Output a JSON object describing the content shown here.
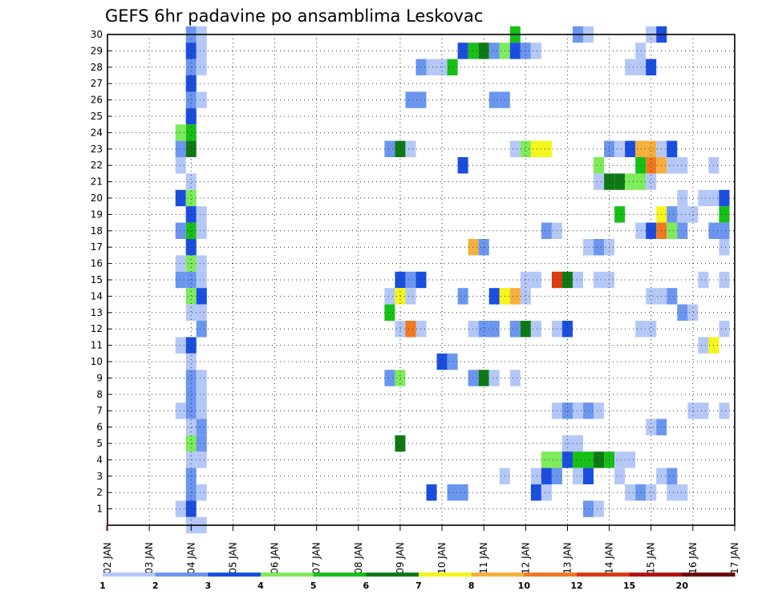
{
  "chart_data": {
    "type": "heatmap",
    "title": "GEFS 6hr padavine po ansamblima Leskovac",
    "xlabel": "",
    "ylabel": "",
    "x_ticks": [
      "02 JAN",
      "03 JAN",
      "04 JAN",
      "05 JAN",
      "06 JAN",
      "07 JAN",
      "08 JAN",
      "09 JAN",
      "10 JAN",
      "11 JAN",
      "12 JAN",
      "13 JAN",
      "14 JAN",
      "15 JAN",
      "16 JAN",
      "17 JAN"
    ],
    "y_ticks": [
      "1",
      "2",
      "3",
      "4",
      "5",
      "6",
      "7",
      "8",
      "9",
      "10",
      "11",
      "12",
      "13",
      "14",
      "15",
      "16",
      "17",
      "18",
      "19",
      "20",
      "21",
      "22",
      "23",
      "24",
      "25",
      "26",
      "27",
      "28",
      "29",
      "30"
    ],
    "x_range": [
      "02 JAN",
      "17 JAN"
    ],
    "y_range": [
      0,
      30
    ],
    "grid": true,
    "legend": {
      "position": "bottom",
      "levels": [
        "1",
        "2",
        "3",
        "4",
        "5",
        "6",
        "7",
        "8",
        "10",
        "12",
        "15",
        "20"
      ],
      "colors": [
        "#b4c8f8",
        "#6a96f0",
        "#1a4ee0",
        "#7deb5a",
        "#16c016",
        "#0e7a16",
        "#f5f51a",
        "#f5af3c",
        "#f0781e",
        "#dc3a14",
        "#b0140e",
        "#6e0a0a"
      ]
    },
    "cells": [
      {
        "member": 30,
        "day": 4,
        "level": 2
      },
      {
        "member": 30,
        "day": 4.25,
        "level": 1
      },
      {
        "member": 30,
        "day": 11.75,
        "level": 5
      },
      {
        "member": 30,
        "day": 13.25,
        "level": 2
      },
      {
        "member": 30,
        "day": 13.5,
        "level": 1
      },
      {
        "member": 30,
        "day": 15,
        "level": 1
      },
      {
        "member": 30,
        "day": 15.25,
        "level": 3
      },
      {
        "member": 29,
        "day": 4,
        "level": 3
      },
      {
        "member": 29,
        "day": 4.25,
        "level": 1
      },
      {
        "member": 29,
        "day": 10.5,
        "level": 3
      },
      {
        "member": 29,
        "day": 10.75,
        "level": 5
      },
      {
        "member": 29,
        "day": 11,
        "level": 6
      },
      {
        "member": 29,
        "day": 11.25,
        "level": 2
      },
      {
        "member": 29,
        "day": 11.5,
        "level": 4
      },
      {
        "member": 29,
        "day": 11.75,
        "level": 3
      },
      {
        "member": 29,
        "day": 12,
        "level": 2
      },
      {
        "member": 29,
        "day": 12.25,
        "level": 1
      },
      {
        "member": 29,
        "day": 14.75,
        "level": 1
      },
      {
        "member": 28,
        "day": 4,
        "level": 2
      },
      {
        "member": 28,
        "day": 4.25,
        "level": 1
      },
      {
        "member": 28,
        "day": 9.5,
        "level": 2
      },
      {
        "member": 28,
        "day": 9.75,
        "level": 1
      },
      {
        "member": 28,
        "day": 10,
        "level": 1
      },
      {
        "member": 28,
        "day": 10.25,
        "level": 5
      },
      {
        "member": 28,
        "day": 14.5,
        "level": 1
      },
      {
        "member": 28,
        "day": 14.75,
        "level": 1
      },
      {
        "member": 28,
        "day": 15,
        "level": 3
      },
      {
        "member": 27,
        "day": 4,
        "level": 3
      },
      {
        "member": 26,
        "day": 4,
        "level": 2
      },
      {
        "member": 26,
        "day": 4.25,
        "level": 1
      },
      {
        "member": 26,
        "day": 9.25,
        "level": 2
      },
      {
        "member": 26,
        "day": 9.5,
        "level": 2
      },
      {
        "member": 26,
        "day": 11.25,
        "level": 2
      },
      {
        "member": 26,
        "day": 11.5,
        "level": 2
      },
      {
        "member": 25,
        "day": 4,
        "level": 3
      },
      {
        "member": 24,
        "day": 3.75,
        "level": 4
      },
      {
        "member": 24,
        "day": 4,
        "level": 5
      },
      {
        "member": 23,
        "day": 3.75,
        "level": 2
      },
      {
        "member": 23,
        "day": 4,
        "level": 6
      },
      {
        "member": 23,
        "day": 8.75,
        "level": 2
      },
      {
        "member": 23,
        "day": 9,
        "level": 6
      },
      {
        "member": 23,
        "day": 9.25,
        "level": 1
      },
      {
        "member": 23,
        "day": 11.75,
        "level": 1
      },
      {
        "member": 23,
        "day": 12,
        "level": 4
      },
      {
        "member": 23,
        "day": 12.25,
        "level": 7
      },
      {
        "member": 23,
        "day": 12.5,
        "level": 7
      },
      {
        "member": 23,
        "day": 14,
        "level": 2
      },
      {
        "member": 23,
        "day": 14.25,
        "level": 1
      },
      {
        "member": 23,
        "day": 14.5,
        "level": 3
      },
      {
        "member": 23,
        "day": 14.75,
        "level": 8
      },
      {
        "member": 23,
        "day": 15,
        "level": 8
      },
      {
        "member": 23,
        "day": 15.25,
        "level": 1
      },
      {
        "member": 23,
        "day": 15.5,
        "level": 3
      },
      {
        "member": 22,
        "day": 3.75,
        "level": 1
      },
      {
        "member": 22,
        "day": 10.5,
        "level": 3
      },
      {
        "member": 22,
        "day": 13.75,
        "level": 4
      },
      {
        "member": 22,
        "day": 14.75,
        "level": 5
      },
      {
        "member": 22,
        "day": 15,
        "level": 9
      },
      {
        "member": 22,
        "day": 15.25,
        "level": 8
      },
      {
        "member": 22,
        "day": 15.5,
        "level": 1
      },
      {
        "member": 22,
        "day": 15.75,
        "level": 1
      },
      {
        "member": 22,
        "day": 16.5,
        "level": 1
      },
      {
        "member": 21,
        "day": 4,
        "level": 1
      },
      {
        "member": 21,
        "day": 13.75,
        "level": 1
      },
      {
        "member": 21,
        "day": 14,
        "level": 6
      },
      {
        "member": 21,
        "day": 14.25,
        "level": 6
      },
      {
        "member": 21,
        "day": 14.5,
        "level": 4
      },
      {
        "member": 21,
        "day": 14.75,
        "level": 4
      },
      {
        "member": 21,
        "day": 15,
        "level": 1
      },
      {
        "member": 20,
        "day": 3.75,
        "level": 3
      },
      {
        "member": 20,
        "day": 4,
        "level": 4
      },
      {
        "member": 20,
        "day": 15.75,
        "level": 1
      },
      {
        "member": 20,
        "day": 16.25,
        "level": 1
      },
      {
        "member": 20,
        "day": 16.5,
        "level": 1
      },
      {
        "member": 20,
        "day": 16.75,
        "level": 3
      },
      {
        "member": 19,
        "day": 4,
        "level": 3
      },
      {
        "member": 19,
        "day": 4.25,
        "level": 1
      },
      {
        "member": 19,
        "day": 14.25,
        "level": 5
      },
      {
        "member": 19,
        "day": 15.25,
        "level": 7
      },
      {
        "member": 19,
        "day": 15.5,
        "level": 2
      },
      {
        "member": 19,
        "day": 15.75,
        "level": 1
      },
      {
        "member": 19,
        "day": 16,
        "level": 1
      },
      {
        "member": 19,
        "day": 16.75,
        "level": 5
      },
      {
        "member": 18,
        "day": 3.75,
        "level": 2
      },
      {
        "member": 18,
        "day": 4,
        "level": 5
      },
      {
        "member": 18,
        "day": 4.25,
        "level": 1
      },
      {
        "member": 18,
        "day": 12.5,
        "level": 2
      },
      {
        "member": 18,
        "day": 12.75,
        "level": 1
      },
      {
        "member": 18,
        "day": 14.75,
        "level": 1
      },
      {
        "member": 18,
        "day": 15,
        "level": 3
      },
      {
        "member": 18,
        "day": 15.25,
        "level": 9
      },
      {
        "member": 18,
        "day": 15.5,
        "level": 4
      },
      {
        "member": 18,
        "day": 15.75,
        "level": 2
      },
      {
        "member": 18,
        "day": 16.5,
        "level": 2
      },
      {
        "member": 18,
        "day": 16.75,
        "level": 2
      },
      {
        "member": 17,
        "day": 4,
        "level": 3
      },
      {
        "member": 17,
        "day": 10.75,
        "level": 8
      },
      {
        "member": 17,
        "day": 11,
        "level": 2
      },
      {
        "member": 17,
        "day": 13.5,
        "level": 1
      },
      {
        "member": 17,
        "day": 13.75,
        "level": 2
      },
      {
        "member": 17,
        "day": 14,
        "level": 1
      },
      {
        "member": 17,
        "day": 16.75,
        "level": 1
      },
      {
        "member": 16,
        "day": 3.75,
        "level": 1
      },
      {
        "member": 16,
        "day": 4,
        "level": 4
      },
      {
        "member": 16,
        "day": 4.25,
        "level": 1
      },
      {
        "member": 15,
        "day": 3.75,
        "level": 2
      },
      {
        "member": 15,
        "day": 4,
        "level": 2
      },
      {
        "member": 15,
        "day": 4.25,
        "level": 1
      },
      {
        "member": 15,
        "day": 9,
        "level": 3
      },
      {
        "member": 15,
        "day": 9.25,
        "level": 2
      },
      {
        "member": 15,
        "day": 9.5,
        "level": 3
      },
      {
        "member": 15,
        "day": 12,
        "level": 1
      },
      {
        "member": 15,
        "day": 12.25,
        "level": 1
      },
      {
        "member": 15,
        "day": 12.75,
        "level": 10
      },
      {
        "member": 15,
        "day": 13,
        "level": 6
      },
      {
        "member": 15,
        "day": 13.25,
        "level": 1
      },
      {
        "member": 15,
        "day": 13.75,
        "level": 1
      },
      {
        "member": 15,
        "day": 14,
        "level": 1
      },
      {
        "member": 15,
        "day": 16.25,
        "level": 1
      },
      {
        "member": 15,
        "day": 16.75,
        "level": 1
      },
      {
        "member": 14,
        "day": 4,
        "level": 4
      },
      {
        "member": 14,
        "day": 4.25,
        "level": 3
      },
      {
        "member": 14,
        "day": 8.75,
        "level": 1
      },
      {
        "member": 14,
        "day": 9,
        "level": 7
      },
      {
        "member": 14,
        "day": 9.25,
        "level": 1
      },
      {
        "member": 14,
        "day": 10.5,
        "level": 2
      },
      {
        "member": 14,
        "day": 11.25,
        "level": 3
      },
      {
        "member": 14,
        "day": 11.5,
        "level": 7
      },
      {
        "member": 14,
        "day": 11.75,
        "level": 8
      },
      {
        "member": 14,
        "day": 12,
        "level": 1
      },
      {
        "member": 14,
        "day": 15,
        "level": 1
      },
      {
        "member": 14,
        "day": 15.25,
        "level": 1
      },
      {
        "member": 14,
        "day": 15.5,
        "level": 2
      },
      {
        "member": 13,
        "day": 4,
        "level": 1
      },
      {
        "member": 13,
        "day": 4.25,
        "level": 1
      },
      {
        "member": 13,
        "day": 8.75,
        "level": 5
      },
      {
        "member": 13,
        "day": 15.75,
        "level": 2
      },
      {
        "member": 13,
        "day": 16,
        "level": 1
      },
      {
        "member": 12,
        "day": 4.25,
        "level": 2
      },
      {
        "member": 12,
        "day": 9,
        "level": 1
      },
      {
        "member": 12,
        "day": 9.25,
        "level": 9
      },
      {
        "member": 12,
        "day": 9.5,
        "level": 1
      },
      {
        "member": 12,
        "day": 10.75,
        "level": 1
      },
      {
        "member": 12,
        "day": 11,
        "level": 2
      },
      {
        "member": 12,
        "day": 11.25,
        "level": 2
      },
      {
        "member": 12,
        "day": 11.75,
        "level": 2
      },
      {
        "member": 12,
        "day": 12,
        "level": 6
      },
      {
        "member": 12,
        "day": 12.25,
        "level": 1
      },
      {
        "member": 12,
        "day": 12.75,
        "level": 1
      },
      {
        "member": 12,
        "day": 13,
        "level": 3
      },
      {
        "member": 12,
        "day": 14.75,
        "level": 1
      },
      {
        "member": 12,
        "day": 15,
        "level": 1
      },
      {
        "member": 12,
        "day": 16.75,
        "level": 1
      },
      {
        "member": 11,
        "day": 3.75,
        "level": 1
      },
      {
        "member": 11,
        "day": 4,
        "level": 3
      },
      {
        "member": 11,
        "day": 16.25,
        "level": 1
      },
      {
        "member": 11,
        "day": 16.5,
        "level": 7
      },
      {
        "member": 10,
        "day": 4,
        "level": 1
      },
      {
        "member": 10,
        "day": 10,
        "level": 3
      },
      {
        "member": 10,
        "day": 10.25,
        "level": 2
      },
      {
        "member": 9,
        "day": 4,
        "level": 2
      },
      {
        "member": 9,
        "day": 4.25,
        "level": 1
      },
      {
        "member": 9,
        "day": 9,
        "level": 4
      },
      {
        "member": 9,
        "day": 8.75,
        "level": 2
      },
      {
        "member": 9,
        "day": 10.75,
        "level": 2
      },
      {
        "member": 9,
        "day": 11,
        "level": 6
      },
      {
        "member": 9,
        "day": 11.25,
        "level": 1
      },
      {
        "member": 9,
        "day": 11.75,
        "level": 1
      },
      {
        "member": 8,
        "day": 4,
        "level": 2
      },
      {
        "member": 8,
        "day": 4.25,
        "level": 1
      },
      {
        "member": 7,
        "day": 3.75,
        "level": 1
      },
      {
        "member": 7,
        "day": 4,
        "level": 2
      },
      {
        "member": 7,
        "day": 4.25,
        "level": 1
      },
      {
        "member": 7,
        "day": 12.75,
        "level": 1
      },
      {
        "member": 7,
        "day": 13,
        "level": 2
      },
      {
        "member": 7,
        "day": 13.25,
        "level": 1
      },
      {
        "member": 7,
        "day": 13.5,
        "level": 2
      },
      {
        "member": 7,
        "day": 13.75,
        "level": 1
      },
      {
        "member": 7,
        "day": 16,
        "level": 1
      },
      {
        "member": 7,
        "day": 16.25,
        "level": 1
      },
      {
        "member": 7,
        "day": 16.75,
        "level": 1
      },
      {
        "member": 6,
        "day": 4,
        "level": 1
      },
      {
        "member": 6,
        "day": 4.25,
        "level": 2
      },
      {
        "member": 6,
        "day": 15,
        "level": 1
      },
      {
        "member": 6,
        "day": 15.25,
        "level": 2
      },
      {
        "member": 5,
        "day": 4,
        "level": 4
      },
      {
        "member": 5,
        "day": 4.25,
        "level": 2
      },
      {
        "member": 5,
        "day": 9,
        "level": 6
      },
      {
        "member": 5,
        "day": 13,
        "level": 1
      },
      {
        "member": 5,
        "day": 13.25,
        "level": 1
      },
      {
        "member": 4,
        "day": 4,
        "level": 1
      },
      {
        "member": 4,
        "day": 4.25,
        "level": 1
      },
      {
        "member": 4,
        "day": 12.5,
        "level": 4
      },
      {
        "member": 4,
        "day": 12.75,
        "level": 4
      },
      {
        "member": 4,
        "day": 13,
        "level": 3
      },
      {
        "member": 4,
        "day": 13.25,
        "level": 5
      },
      {
        "member": 4,
        "day": 13.5,
        "level": 5
      },
      {
        "member": 4,
        "day": 13.75,
        "level": 6
      },
      {
        "member": 4,
        "day": 14,
        "level": 5
      },
      {
        "member": 4,
        "day": 14.25,
        "level": 1
      },
      {
        "member": 4,
        "day": 14.5,
        "level": 1
      },
      {
        "member": 3,
        "day": 4,
        "level": 2
      },
      {
        "member": 3,
        "day": 11.5,
        "level": 1
      },
      {
        "member": 3,
        "day": 12.25,
        "level": 1
      },
      {
        "member": 3,
        "day": 12.5,
        "level": 3
      },
      {
        "member": 3,
        "day": 12.75,
        "level": 2
      },
      {
        "member": 3,
        "day": 13.25,
        "level": 1
      },
      {
        "member": 3,
        "day": 13.5,
        "level": 3
      },
      {
        "member": 3,
        "day": 14.25,
        "level": 1
      },
      {
        "member": 3,
        "day": 15.25,
        "level": 1
      },
      {
        "member": 3,
        "day": 15.5,
        "level": 2
      },
      {
        "member": 2,
        "day": 4,
        "level": 2
      },
      {
        "member": 2,
        "day": 4.25,
        "level": 1
      },
      {
        "member": 2,
        "day": 9.75,
        "level": 3
      },
      {
        "member": 2,
        "day": 10.25,
        "level": 2
      },
      {
        "member": 2,
        "day": 10.5,
        "level": 2
      },
      {
        "member": 2,
        "day": 12.25,
        "level": 3
      },
      {
        "member": 2,
        "day": 12.5,
        "level": 1
      },
      {
        "member": 2,
        "day": 14.5,
        "level": 1
      },
      {
        "member": 2,
        "day": 14.75,
        "level": 2
      },
      {
        "member": 2,
        "day": 15,
        "level": 1
      },
      {
        "member": 2,
        "day": 15.5,
        "level": 1
      },
      {
        "member": 2,
        "day": 15.75,
        "level": 1
      },
      {
        "member": 1,
        "day": 3.75,
        "level": 1
      },
      {
        "member": 1,
        "day": 4,
        "level": 3
      },
      {
        "member": 1,
        "day": 13.5,
        "level": 2
      },
      {
        "member": 1,
        "day": 13.75,
        "level": 1
      },
      {
        "member": 0,
        "day": 4,
        "level": 1
      },
      {
        "member": 0,
        "day": 4.25,
        "level": 1
      }
    ]
  }
}
